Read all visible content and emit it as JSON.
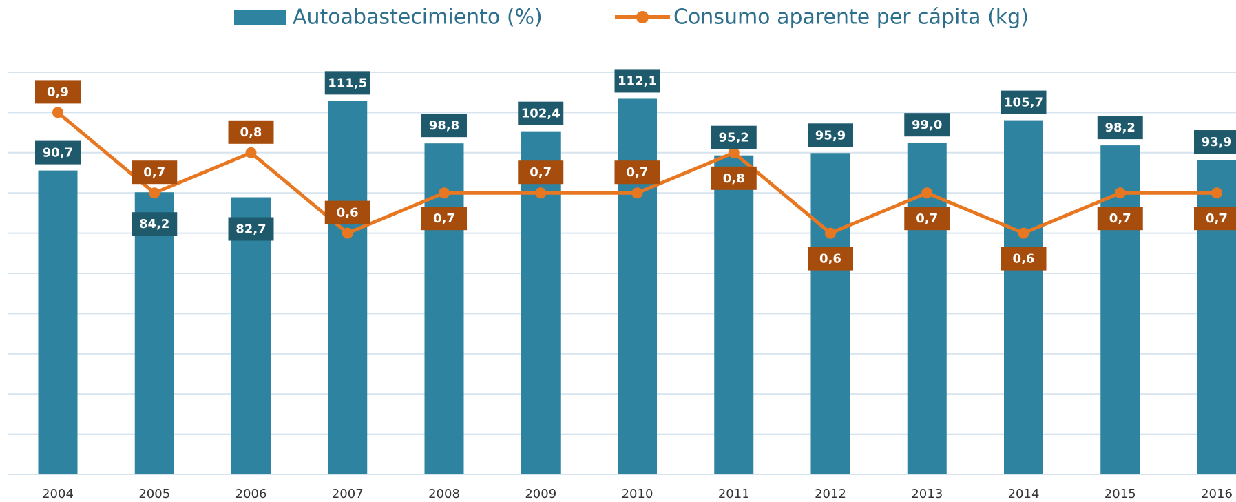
{
  "chart_data": {
    "type": "bar-line",
    "categories": [
      "2004",
      "2005",
      "2006",
      "2007",
      "2008",
      "2009",
      "2010",
      "2011",
      "2012",
      "2013",
      "2014",
      "2015",
      "2016"
    ],
    "series": [
      {
        "name": "Autoabastecimiento (%)",
        "type": "bar",
        "color": "#2e84a0",
        "values": [
          90.7,
          84.2,
          82.7,
          111.5,
          98.8,
          102.4,
          112.1,
          95.2,
          95.9,
          99.0,
          105.7,
          98.2,
          93.9
        ],
        "value_labels": [
          "90,7",
          "84,2",
          "82,7",
          "111,5",
          "98,8",
          "102,4",
          "112,1",
          "95,2",
          "95,9",
          "99,0",
          "105,7",
          "98,2",
          "93,9"
        ]
      },
      {
        "name": "Consumo aparente per cápita (kg)",
        "type": "line",
        "axis": "y2",
        "color": "#e87722",
        "values": [
          0.9,
          0.7,
          0.8,
          0.6,
          0.7,
          0.7,
          0.7,
          0.8,
          0.6,
          0.7,
          0.6,
          0.7,
          0.7
        ],
        "value_labels": [
          "0,9",
          "0,7",
          "0,8",
          "0,6",
          "0,7",
          "0,7",
          "0,7",
          "0,8",
          "0,6",
          "0,7",
          "0,6",
          "0,7",
          "0,7"
        ]
      }
    ],
    "ylim": [
      0,
      120
    ],
    "yticks": [
      0,
      12,
      24,
      36,
      48,
      60,
      72,
      84,
      96,
      108,
      120
    ],
    "y2lim": [
      0,
      1
    ],
    "grid": true,
    "legend": "top"
  }
}
